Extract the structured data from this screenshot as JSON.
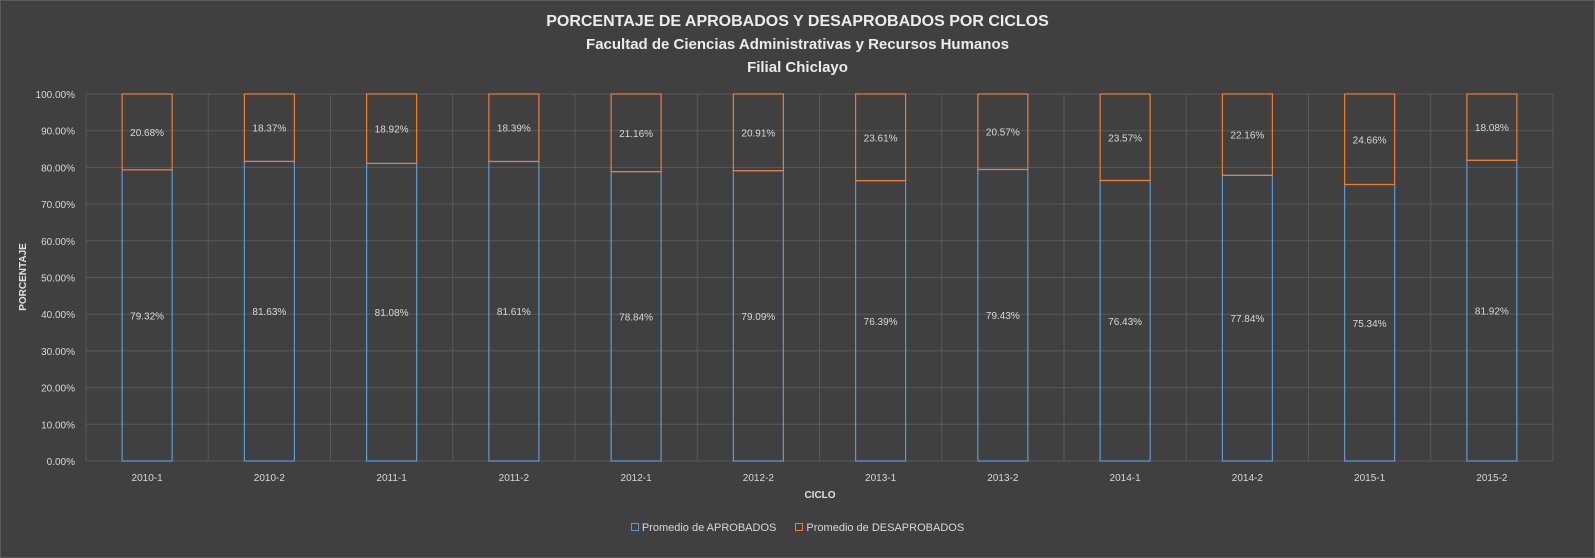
{
  "chart_data": {
    "type": "bar",
    "stacked": true,
    "title": "PORCENTAJE DE APROBADOS Y DESAPROBADOS POR CICLOS",
    "subtitle_lines": [
      "Facultad de Ciencias Administrativas y Recursos Humanos",
      "Filial Chiclayo"
    ],
    "xlabel": "CICLO",
    "ylabel": "PORCENTAJE",
    "ylim": [
      0,
      100
    ],
    "yticks": [
      "0.00%",
      "10.00%",
      "20.00%",
      "30.00%",
      "40.00%",
      "50.00%",
      "60.00%",
      "70.00%",
      "80.00%",
      "90.00%",
      "100.00%"
    ],
    "grid": true,
    "legend_position": "bottom",
    "categories": [
      "2010-1",
      "2010-2",
      "2011-1",
      "2011-2",
      "2012-1",
      "2012-2",
      "2013-1",
      "2013-2",
      "2014-1",
      "2014-2",
      "2015-1",
      "2015-2"
    ],
    "series": [
      {
        "name": "Promedio de APROBADOS",
        "color": "#5b9bd5",
        "values": [
          79.32,
          81.63,
          81.08,
          81.61,
          78.84,
          79.09,
          76.39,
          79.43,
          76.43,
          77.84,
          75.34,
          81.92
        ],
        "labels": [
          "79.32%",
          "81.63%",
          "81.08%",
          "81.61%",
          "78.84%",
          "79.09%",
          "76.39%",
          "79.43%",
          "76.43%",
          "77.84%",
          "75.34%",
          "81.92%"
        ]
      },
      {
        "name": "Promedio de DESAPROBADOS",
        "color": "#ed7d31",
        "values": [
          20.68,
          18.37,
          18.92,
          18.39,
          21.16,
          20.91,
          23.61,
          20.57,
          23.57,
          22.16,
          24.66,
          18.08
        ],
        "labels": [
          "20.68%",
          "18.37%",
          "18.92%",
          "18.39%",
          "21.16%",
          "20.91%",
          "23.61%",
          "20.57%",
          "23.57%",
          "22.16%",
          "24.66%",
          "18.08%"
        ]
      }
    ]
  }
}
